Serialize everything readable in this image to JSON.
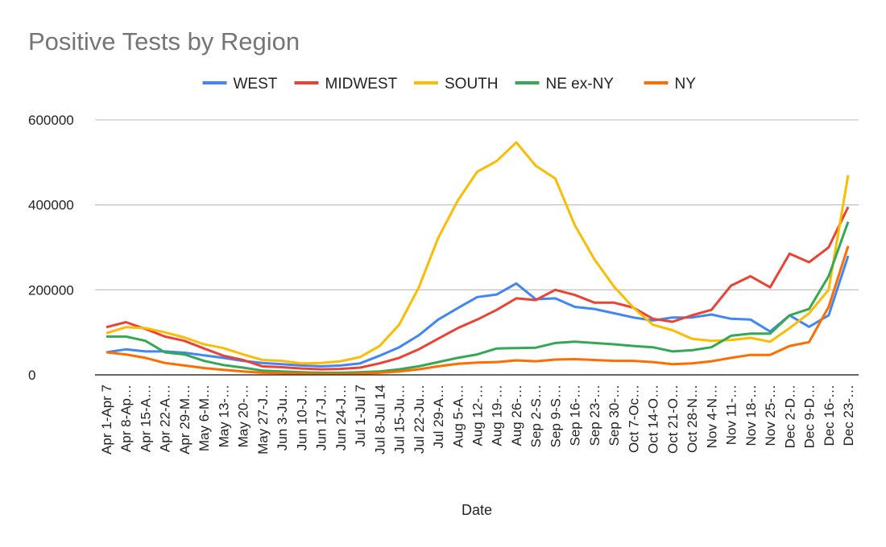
{
  "chart_data": {
    "type": "line",
    "title": "Positive Tests by Region",
    "xlabel": "Date",
    "ylabel": "",
    "ylim": [
      0,
      600000
    ],
    "yticks": [
      "0",
      "200000",
      "400000",
      "600000"
    ],
    "ytick_values": [
      0,
      200000,
      400000,
      600000
    ],
    "grid": true,
    "legend_position": "top",
    "categories": [
      "Apr 1-Apr 7",
      "Apr 8-Ap…",
      "Apr 15-A…",
      "Apr 22-A…",
      "Apr 29-M…",
      "May 6-M…",
      "May 13-…",
      "May 20-…",
      "May 27-J…",
      "Jun 3-Ju…",
      "Jun 10-J…",
      "Jun 17-J…",
      "Jun 24-J…",
      "Jul 1-Jul 7",
      "Jul 8-Jul 14",
      "Jul 15-Ju…",
      "Jul 22-Ju…",
      "Jul 29-A…",
      "Aug 5-A…",
      "Aug 12-…",
      "Aug 19-…",
      "Aug 26-…",
      "Sep 2-S…",
      "Sep 9-S…",
      "Sep 16-…",
      "Sep 23-…",
      "Sep 30-…",
      "Oct 7-Oc…",
      "Oct 14-O…",
      "Oct 21-O…",
      "Oct 28-N…",
      "Nov 4-N…",
      "Nov 11-…",
      "Nov 18-…",
      "Nov 25-…",
      "Dec 2-D…",
      "Dec 9-D…",
      "Dec 16-…",
      "Dec 23-…"
    ],
    "series": [
      {
        "name": "WEST",
        "color": "#4285f4",
        "values": [
          53000,
          60000,
          55000,
          55000,
          52000,
          46000,
          40000,
          33000,
          28000,
          25000,
          22000,
          20000,
          22000,
          27000,
          45000,
          65000,
          93000,
          130000,
          157000,
          183000,
          189000,
          215000,
          178000,
          180000,
          160000,
          155000,
          145000,
          135000,
          128000,
          135000,
          135000,
          142000,
          132000,
          130000,
          102000,
          140000,
          113000,
          140000,
          280000
        ]
      },
      {
        "name": "MIDWEST",
        "color": "#ea4335",
        "values": [
          112000,
          124000,
          108000,
          90000,
          80000,
          62000,
          45000,
          35000,
          20000,
          18000,
          15000,
          13000,
          14000,
          17000,
          27000,
          40000,
          60000,
          85000,
          110000,
          130000,
          153000,
          180000,
          176000,
          200000,
          188000,
          170000,
          170000,
          158000,
          132000,
          125000,
          140000,
          153000,
          210000,
          232000,
          206000,
          285000,
          265000,
          300000,
          395000
        ]
      },
      {
        "name": "SOUTH",
        "color": "#fbbc04",
        "values": [
          98000,
          112000,
          110000,
          100000,
          88000,
          72000,
          63000,
          48000,
          35000,
          33000,
          27000,
          28000,
          32000,
          42000,
          68000,
          118000,
          205000,
          322000,
          410000,
          478000,
          503000,
          547000,
          492000,
          462000,
          352000,
          272000,
          208000,
          158000,
          118000,
          105000,
          85000,
          80000,
          82000,
          87000,
          78000,
          110000,
          145000,
          200000,
          470000
        ]
      },
      {
        "name": "NE ex-NY",
        "color": "#34a853",
        "values": [
          90000,
          90000,
          80000,
          53000,
          48000,
          33000,
          23000,
          17000,
          10000,
          8000,
          6000,
          5000,
          5000,
          6000,
          8000,
          13000,
          20000,
          30000,
          40000,
          48000,
          62000,
          63000,
          64000,
          75000,
          78000,
          75000,
          72000,
          68000,
          65000,
          55000,
          58000,
          65000,
          92000,
          97000,
          97000,
          140000,
          155000,
          232000,
          360000
        ]
      },
      {
        "name": "NY",
        "color": "#ff6d01",
        "values": [
          53000,
          48000,
          40000,
          28000,
          22000,
          16000,
          12000,
          8000,
          5000,
          4000,
          3000,
          2000,
          2000,
          3000,
          5000,
          8000,
          13000,
          20000,
          26000,
          29000,
          30000,
          34000,
          32000,
          36000,
          37000,
          35000,
          33000,
          33000,
          30000,
          25000,
          27000,
          32000,
          40000,
          47000,
          47000,
          68000,
          77000,
          160000,
          303000
        ]
      }
    ]
  }
}
